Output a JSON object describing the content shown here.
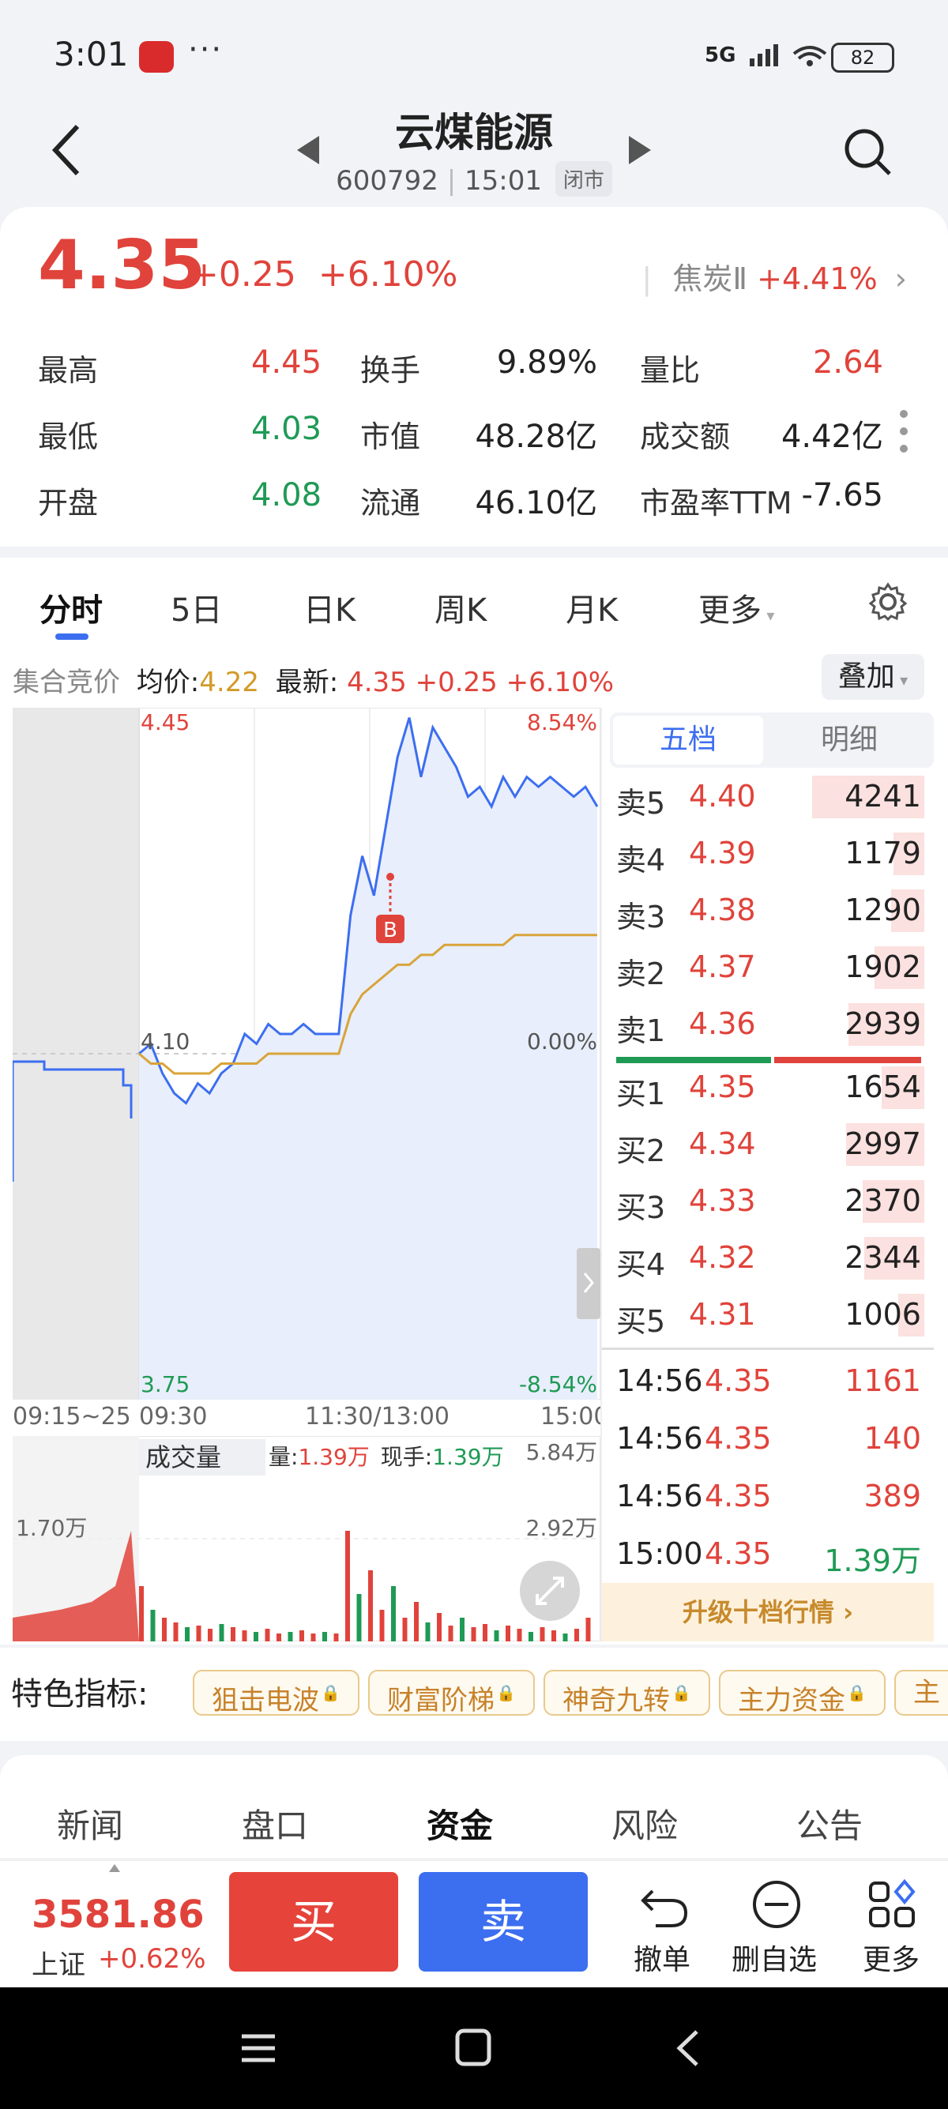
{
  "status_bar": {
    "time": "3:01",
    "more": "···",
    "network": "5G",
    "battery": "82"
  },
  "header": {
    "title": "云煤能源",
    "code": "600792",
    "time": "15:01",
    "market_status": "闭市"
  },
  "quote": {
    "price": "4.35",
    "change": "+0.25",
    "change_pct": "+6.10%",
    "sector_name": "焦炭Ⅱ",
    "sector_change": "+4.41%",
    "stats": [
      {
        "label": "最高",
        "value": "4.45",
        "color": "red"
      },
      {
        "label": "换手",
        "value": "9.89%",
        "color": "black"
      },
      {
        "label": "量比",
        "value": "2.64",
        "color": "red"
      },
      {
        "label": "最低",
        "value": "4.03",
        "color": "green"
      },
      {
        "label": "市值",
        "value": "48.28亿",
        "color": "black"
      },
      {
        "label": "成交额",
        "value": "4.42亿",
        "color": "black"
      },
      {
        "label": "开盘",
        "value": "4.08",
        "color": "green"
      },
      {
        "label": "流通",
        "value": "46.10亿",
        "color": "black"
      },
      {
        "label": "市盈率TTM",
        "value": "-7.65",
        "color": "black"
      }
    ]
  },
  "chart_tabs": [
    "分时",
    "5日",
    "日K",
    "周K",
    "月K",
    "更多"
  ],
  "chart_info": {
    "auction": "集合竞价",
    "avg_label": "均价:",
    "avg_value": "4.22",
    "latest_label": "最新:",
    "latest_value": "4.35 +0.25 +6.10%",
    "overlay": "叠加"
  },
  "chart_data": {
    "type": "line",
    "y_top": "4.45",
    "y_top_pct": "8.54%",
    "y_mid": "4.10",
    "y_mid_pct": "0.00%",
    "y_bottom": "3.75",
    "y_bottom_pct": "-8.54%",
    "ylim": [
      3.75,
      4.45
    ],
    "x_labels": [
      "09:15~25",
      "09:30",
      "11:30/13:00",
      "15:00"
    ],
    "price_series": [
      4.1,
      4.11,
      4.08,
      4.06,
      4.05,
      4.07,
      4.06,
      4.08,
      4.09,
      4.12,
      4.11,
      4.13,
      4.12,
      4.12,
      4.13,
      4.12,
      4.12,
      4.12,
      4.24,
      4.3,
      4.26,
      4.33,
      4.4,
      4.44,
      4.38,
      4.43,
      4.41,
      4.39,
      4.36,
      4.37,
      4.35,
      4.38,
      4.36,
      4.38,
      4.37,
      4.38,
      4.37,
      4.36,
      4.37,
      4.35
    ],
    "avg_series": [
      4.1,
      4.09,
      4.09,
      4.08,
      4.08,
      4.08,
      4.08,
      4.09,
      4.09,
      4.09,
      4.09,
      4.1,
      4.1,
      4.1,
      4.1,
      4.1,
      4.1,
      4.1,
      4.14,
      4.16,
      4.17,
      4.18,
      4.19,
      4.19,
      4.2,
      4.2,
      4.21,
      4.21,
      4.21,
      4.21,
      4.21,
      4.21,
      4.22,
      4.22,
      4.22,
      4.22,
      4.22,
      4.22,
      4.22,
      4.22
    ],
    "buy_marker": "B",
    "volume": {
      "label": "成交量",
      "vol_label": "量:",
      "vol_value": "1.39万",
      "hand_label": "现手:",
      "hand_value": "1.39万",
      "ticks": [
        "5.84万",
        "2.92万",
        "1.70万"
      ]
    }
  },
  "order_book": {
    "tabs": [
      "五档",
      "明细"
    ],
    "asks": [
      {
        "label": "卖5",
        "price": "4.40",
        "vol": "4241",
        "w": 0.95
      },
      {
        "label": "卖4",
        "price": "4.39",
        "vol": "1179",
        "w": 0.26
      },
      {
        "label": "卖3",
        "price": "4.38",
        "vol": "1290",
        "w": 0.28
      },
      {
        "label": "卖2",
        "price": "4.37",
        "vol": "1902",
        "w": 0.42
      },
      {
        "label": "卖1",
        "price": "4.36",
        "vol": "2939",
        "w": 0.64
      }
    ],
    "bids": [
      {
        "label": "买1",
        "price": "4.35",
        "vol": "1654",
        "w": 0.36
      },
      {
        "label": "买2",
        "price": "4.34",
        "vol": "2997",
        "w": 0.66
      },
      {
        "label": "买3",
        "price": "4.33",
        "vol": "2370",
        "w": 0.52
      },
      {
        "label": "买4",
        "price": "4.32",
        "vol": "2344",
        "w": 0.51
      },
      {
        "label": "买5",
        "price": "4.31",
        "vol": "1006",
        "w": 0.22
      }
    ],
    "trades": [
      {
        "time": "14:56",
        "price": "4.35",
        "vol": "1161",
        "color": "red"
      },
      {
        "time": "14:56",
        "price": "4.35",
        "vol": "140",
        "color": "red"
      },
      {
        "time": "14:56",
        "price": "4.35",
        "vol": "389",
        "color": "red"
      },
      {
        "time": "15:00",
        "price": "4.35",
        "vol": "1.39万",
        "color": "green"
      }
    ],
    "upgrade": "升级十档行情 ›"
  },
  "features": {
    "label": "特色指标:",
    "chips": [
      "狙击电波",
      "财富阶梯",
      "神奇九转",
      "主力资金",
      "主"
    ]
  },
  "news_tabs": [
    "新闻",
    "盘口",
    "资金",
    "风险",
    "公告"
  ],
  "bottom": {
    "index_value": "3581.86",
    "index_name": "上证",
    "index_change": "+0.62%",
    "buy": "买",
    "sell": "卖",
    "actions": [
      "撤单",
      "删自选",
      "更多"
    ]
  }
}
